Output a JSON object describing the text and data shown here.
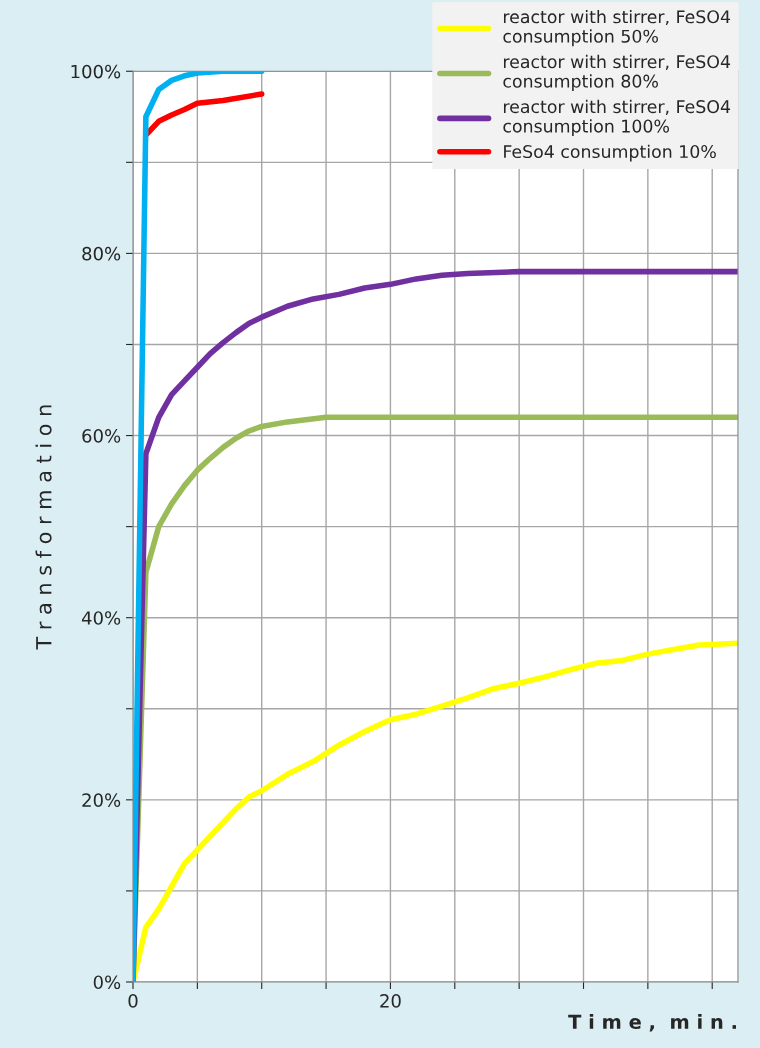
{
  "chart_data": {
    "type": "line",
    "xlabel": "T i m e ,  m i n .",
    "ylabel": "T r a n s f o r m a t i o n",
    "xlim": [
      0,
      47
    ],
    "xticks": [
      0,
      {
        "value": 5,
        "label": null
      },
      {
        "value": 10,
        "label": null
      },
      {
        "value": 15,
        "label": null
      },
      20,
      {
        "value": 25,
        "label": null
      },
      {
        "value": 30,
        "label": null
      },
      {
        "value": 35,
        "label": null
      },
      {
        "value": 40,
        "label": null
      },
      {
        "value": 45,
        "label": null
      }
    ],
    "ylim": [
      0,
      100
    ],
    "yticks": [
      {
        "value": 0,
        "label": "0%"
      },
      {
        "value": 10,
        "label": null
      },
      {
        "value": 20,
        "label": "20%"
      },
      {
        "value": 30,
        "label": null
      },
      {
        "value": 40,
        "label": "40%"
      },
      {
        "value": 50,
        "label": null
      },
      {
        "value": 60,
        "label": "60%"
      },
      {
        "value": 70,
        "label": null
      },
      {
        "value": 80,
        "label": "80%"
      },
      {
        "value": 90,
        "label": null
      },
      {
        "value": 100,
        "label": "100%"
      }
    ],
    "grid": true,
    "legend": "top right",
    "marker": "none",
    "line_style": "solid",
    "series": [
      {
        "name": "reactor with stirrer, FeSO4\nconsumption 50%",
        "color": "#ffff00",
        "x": [
          0,
          0.5,
          1,
          2,
          3,
          4,
          5,
          6,
          7,
          8,
          9,
          10,
          12,
          14,
          16,
          18,
          20,
          22,
          24,
          26,
          28,
          30,
          32,
          34,
          36,
          38,
          40,
          42,
          44,
          47
        ],
        "values": [
          0,
          3,
          6,
          8,
          10.5,
          13,
          14.5,
          16,
          17.5,
          19,
          20.3,
          21,
          22.8,
          24.2,
          26,
          27.5,
          28.8,
          29.4,
          30.3,
          31.2,
          32.2,
          32.8,
          33.5,
          34.3,
          35,
          35.3,
          36,
          36.5,
          37,
          37.2
        ]
      },
      {
        "name": "reactor with stirrer, FeSO4\nconsumption 80%",
        "color": "#9bbb59",
        "x": [
          0,
          1,
          2,
          3,
          4,
          5,
          6,
          7,
          8,
          9,
          10,
          12,
          15,
          47
        ],
        "values": [
          0,
          45,
          50,
          52.5,
          54.5,
          56.2,
          57.5,
          58.7,
          59.7,
          60.5,
          61,
          61.5,
          62,
          62
        ]
      },
      {
        "name": "reactor with stirrer, FeSO4\nconsumption 100%",
        "color": "#7030a0",
        "x": [
          0,
          1,
          2,
          3,
          4,
          5,
          6,
          7,
          8,
          9,
          10,
          12,
          14,
          16,
          18,
          20,
          22,
          24,
          26,
          30,
          47
        ],
        "values": [
          0,
          58,
          62,
          64.5,
          66,
          67.5,
          69,
          70.2,
          71.3,
          72.3,
          73,
          74.2,
          75,
          75.5,
          76.2,
          76.6,
          77.2,
          77.6,
          77.8,
          78,
          78
        ]
      },
      {
        "name": "FeSo4 consumption 10%",
        "color": "#ff0000",
        "x": [
          1,
          2,
          3,
          4,
          5,
          7,
          10
        ],
        "values": [
          93,
          94.5,
          95.2,
          95.8,
          96.5,
          96.8,
          97.5
        ]
      },
      {
        "color": "#00b0f0",
        "x": [
          0,
          1,
          2,
          3,
          4,
          5,
          7,
          10
        ],
        "values": [
          0,
          95,
          98,
          99,
          99.5,
          99.8,
          100,
          100
        ]
      }
    ]
  }
}
